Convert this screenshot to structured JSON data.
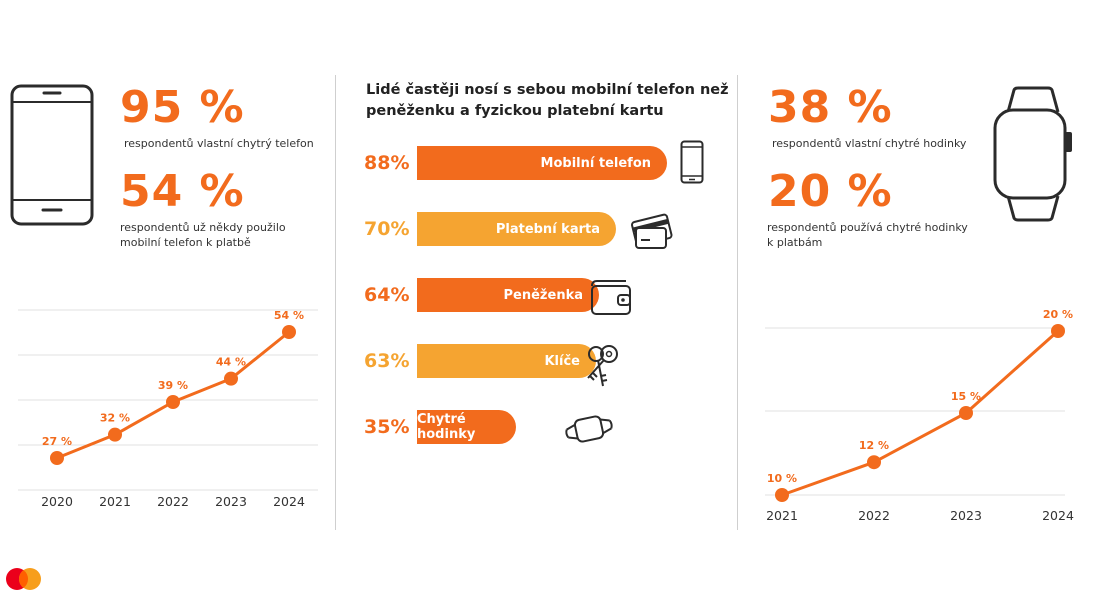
{
  "colors": {
    "orange": "#f26b1d",
    "light_orange": "#f5a431",
    "grid": "#e0e0e0",
    "dark": "#2b2b2b"
  },
  "left": {
    "stat1": {
      "value": "95 %",
      "text": "respondentů vlastní chytrý telefon"
    },
    "stat2": {
      "value": "54 %",
      "text_line1": "respondentů už někdy použilo",
      "text_line2": "mobilní telefon k platbě"
    },
    "icon": "smartphone-icon"
  },
  "center": {
    "heading_line1": "Lidé častěji nosí s sebou mobilní telefon než",
    "heading_line2": "peněženku a fyzickou platební kartu"
  },
  "right": {
    "stat1": {
      "value": "38 %",
      "text": "respondentů vlastní chytré hodinky"
    },
    "stat2": {
      "value": "20 %",
      "text_line1": "respondentů používá chytré hodinky",
      "text_line2": "k platbám"
    },
    "icon": "smartwatch-icon"
  },
  "chart_data": [
    {
      "type": "line",
      "x": [
        "2020",
        "2021",
        "2022",
        "2023",
        "2024"
      ],
      "values": [
        27,
        32,
        39,
        44,
        54
      ],
      "data_labels": [
        "27 %",
        "32 %",
        "39 %",
        "44 %",
        "54 %"
      ],
      "color": "#f26b1d",
      "grid": true
    },
    {
      "type": "bar",
      "orientation": "horizontal",
      "categories": [
        "Mobilní telefon",
        "Platební karta",
        "Peněženka",
        "Klíče",
        "Chytré hodinky"
      ],
      "values": [
        88,
        70,
        64,
        63,
        35
      ],
      "data_labels": [
        "88%",
        "70%",
        "64%",
        "63%",
        "35%"
      ],
      "colors": [
        "#f26b1d",
        "#f5a431",
        "#f26b1d",
        "#f5a431",
        "#f26b1d"
      ],
      "icons": [
        "smartphone-icon",
        "credit-card-icon",
        "wallet-icon",
        "keys-icon",
        "smartwatch-icon"
      ]
    },
    {
      "type": "line",
      "x": [
        "2021",
        "2022",
        "2023",
        "2024"
      ],
      "values": [
        10,
        12,
        15,
        20
      ],
      "data_labels": [
        "10 %",
        "12 %",
        "15 %",
        "20 %"
      ],
      "color": "#f26b1d",
      "grid": true
    }
  ],
  "logo": "mastercard-logo"
}
